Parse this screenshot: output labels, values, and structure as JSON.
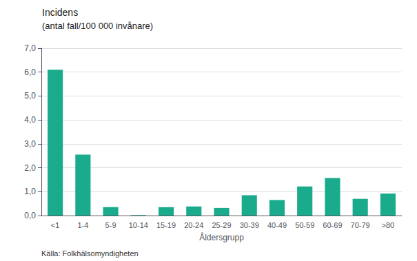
{
  "chart_data": {
    "type": "bar",
    "title": "Incidens",
    "subtitle": "(antal fall/100 000 invånare)",
    "xlabel": "Åldersgrupp",
    "annotations": [
      "Källa: Folkhälsomyndigheten"
    ],
    "categories": [
      "<1",
      "1-4",
      "5-9",
      "10-14",
      "15-19",
      "20-24",
      "25-29",
      "30-39",
      "40-49",
      "50-59",
      "60-69",
      "70-79",
      ">80"
    ],
    "values": [
      6.1,
      2.55,
      0.35,
      0.02,
      0.35,
      0.38,
      0.32,
      0.85,
      0.65,
      1.22,
      1.57,
      0.7,
      0.92
    ],
    "color": "#1aaa8c",
    "ylim": [
      0,
      7.0
    ],
    "yticks": [
      {
        "value": 0.0,
        "label": "0,0"
      },
      {
        "value": 1.0,
        "label": "1,0"
      },
      {
        "value": 2.0,
        "label": "2,0"
      },
      {
        "value": 3.0,
        "label": "3,0"
      },
      {
        "value": 4.0,
        "label": "4,0"
      },
      {
        "value": 5.0,
        "label": "5,0"
      },
      {
        "value": 6.0,
        "label": "6,0"
      },
      {
        "value": 7.0,
        "label": "7,0"
      }
    ],
    "grid": true
  }
}
